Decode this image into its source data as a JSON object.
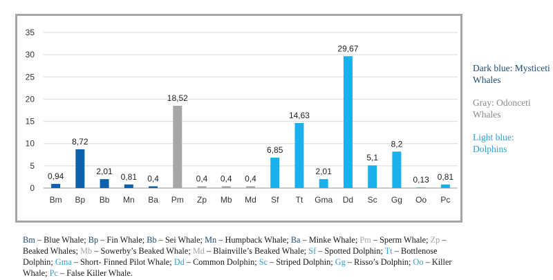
{
  "chart_data": {
    "type": "bar",
    "categories": [
      "Bm",
      "Bp",
      "Bb",
      "Mn",
      "Ba",
      "Pm",
      "Zp",
      "Mb",
      "Md",
      "Sf",
      "Tt",
      "Gma",
      "Dd",
      "Sc",
      "Gg",
      "Oo",
      "Pc"
    ],
    "values": [
      0.94,
      8.72,
      2.01,
      0.81,
      0.4,
      18.52,
      0.4,
      0.4,
      0.4,
      6.85,
      14.63,
      2.01,
      29.67,
      5.1,
      8.2,
      0.13,
      0.81
    ],
    "value_labels": [
      "0,94",
      "8,72",
      "2,01",
      "0,81",
      "0,4",
      "18,52",
      "0,4",
      "0,4",
      "0,4",
      "6,85",
      "14,63",
      "2,01",
      "29,67",
      "5,1",
      "8,2",
      "0,13",
      "0,81"
    ],
    "groups": [
      "mysticeti",
      "mysticeti",
      "mysticeti",
      "mysticeti",
      "mysticeti",
      "odonceti",
      "odonceti",
      "odonceti",
      "odonceti",
      "dolphin",
      "dolphin",
      "dolphin",
      "dolphin",
      "dolphin",
      "dolphin",
      "dolphin",
      "dolphin"
    ],
    "ylim": [
      0,
      35
    ],
    "yticks": [
      0,
      5,
      10,
      15,
      20,
      25,
      30,
      35
    ],
    "grid": true,
    "title": "",
    "xlabel": "",
    "ylabel": "",
    "colors": {
      "mysticeti": "#0e62ad",
      "odonceti": "#a6a6a6",
      "dolphin": "#1ab0ec"
    }
  },
  "legend": {
    "dark_blue": {
      "text": "Dark blue: Mysticeti Whales",
      "color": "#1f4e79"
    },
    "gray": {
      "text": "Gray: Odonceti Whales",
      "color": "#8c8c8c"
    },
    "light_blue": {
      "text": "Light blue: Dolphins",
      "color": "#2e9fd6"
    }
  },
  "footnote": [
    {
      "code": "Bm",
      "name": "Blue Whale",
      "group": "mysticeti"
    },
    {
      "code": "Bp",
      "name": "Fin Whale",
      "group": "mysticeti"
    },
    {
      "code": "Bb",
      "name": "Sei Whale",
      "group": "mysticeti"
    },
    {
      "code": "Mn",
      "name": "Humpback Whale",
      "group": "mysticeti"
    },
    {
      "code": "Ba",
      "name": "Minke Whale",
      "group": "mysticeti"
    },
    {
      "code": "Pm",
      "name": "Sperm Whale",
      "group": "odonceti"
    },
    {
      "code": "Zp",
      "name": "Beaked Whales",
      "group": "odonceti"
    },
    {
      "code": "Mb",
      "name": "Sowerby’s Beaked Whale",
      "group": "odonceti"
    },
    {
      "code": "Md",
      "name": "Blainville’s Beaked Whale",
      "group": "odonceti"
    },
    {
      "code": "Sf",
      "name": "Spotted Dolphin",
      "group": "dolphin"
    },
    {
      "code": "Tt",
      "name": "Bottlenose Dolphin",
      "group": "dolphin"
    },
    {
      "code": "Gma",
      "name": "Short- Finned Pilot Whale",
      "group": "dolphin"
    },
    {
      "code": "Dd",
      "name": "Common Dolphin",
      "group": "dolphin"
    },
    {
      "code": "Sc",
      "name": "Striped Dolphin",
      "group": "dolphin"
    },
    {
      "code": "Gg",
      "name": "Risso’s Dolphin",
      "group": "dolphin"
    },
    {
      "code": "Oo",
      "name": "Killer Whale",
      "group": "dolphin"
    },
    {
      "code": "Pc",
      "name": "False Killer Whale",
      "group": "dolphin"
    }
  ],
  "footnote_colors": {
    "mysticeti": "#1f4e79",
    "odonceti": "#a6a6a6",
    "dolphin": "#2e9fd6"
  }
}
